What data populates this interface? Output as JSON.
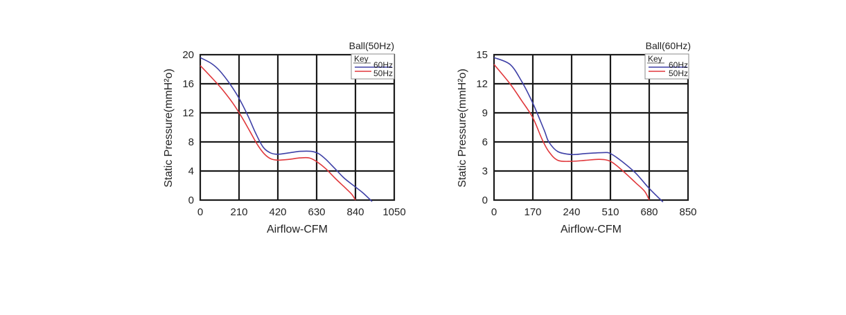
{
  "colors": {
    "series_60hz": "#3d3fa6",
    "series_50hz": "#e0373b",
    "grid": "#1a1a1a",
    "background": "#ffffff"
  },
  "chart_data": [
    {
      "type": "line",
      "title": "Ball(50Hz)",
      "xlabel": "Airflow-CFM",
      "ylabel": "Static Pressure(mmH²o)",
      "xticks": [
        "0",
        "210",
        "420",
        "630",
        "840",
        "1050"
      ],
      "yticks": [
        "20",
        "16",
        "12",
        "8",
        "4",
        "0"
      ],
      "xlim": [
        0,
        1050
      ],
      "ylim": [
        0,
        20
      ],
      "grid": true,
      "legend_title": "Key",
      "legend_position": "top-right",
      "series": [
        {
          "name": "60Hz",
          "color": "#3d3fa6",
          "points": [
            [
              0,
              19.6
            ],
            [
              60,
              18.8
            ],
            [
              105,
              17.8
            ],
            [
              160,
              16.0
            ],
            [
              210,
              14.0
            ],
            [
              260,
              11.5
            ],
            [
              300,
              9.2
            ],
            [
              340,
              7.3
            ],
            [
              380,
              6.5
            ],
            [
              420,
              6.3
            ],
            [
              480,
              6.5
            ],
            [
              540,
              6.7
            ],
            [
              600,
              6.7
            ],
            [
              640,
              6.4
            ],
            [
              680,
              5.6
            ],
            [
              730,
              4.3
            ],
            [
              780,
              3.0
            ],
            [
              840,
              1.8
            ],
            [
              880,
              1.0
            ],
            [
              930,
              -0.2
            ]
          ]
        },
        {
          "name": "50Hz",
          "color": "#e0373b",
          "points": [
            [
              0,
              18.5
            ],
            [
              60,
              16.9
            ],
            [
              120,
              15.2
            ],
            [
              180,
              13.2
            ],
            [
              230,
              11.2
            ],
            [
              270,
              9.4
            ],
            [
              310,
              7.6
            ],
            [
              345,
              6.4
            ],
            [
              380,
              5.7
            ],
            [
              420,
              5.5
            ],
            [
              480,
              5.6
            ],
            [
              540,
              5.8
            ],
            [
              590,
              5.8
            ],
            [
              630,
              5.3
            ],
            [
              680,
              4.3
            ],
            [
              730,
              3.0
            ],
            [
              780,
              1.8
            ],
            [
              820,
              0.8
            ],
            [
              840,
              0.0
            ]
          ]
        }
      ]
    },
    {
      "type": "line",
      "title": "Ball(60Hz)",
      "xlabel": "Airflow-CFM",
      "ylabel": "Static Pressure(mmH²o)",
      "xticks": [
        "0",
        "170",
        "240",
        "510",
        "680",
        "850"
      ],
      "yticks": [
        "15",
        "12",
        "9",
        "6",
        "3",
        "0"
      ],
      "xlim": [
        0,
        850
      ],
      "ylim": [
        0,
        15
      ],
      "grid": true,
      "legend_title": "Key",
      "legend_position": "top-right",
      "series": [
        {
          "name": "60Hz",
          "color": "#3d3fa6",
          "points": [
            [
              0,
              14.7
            ],
            [
              70,
              14.0
            ],
            [
              120,
              12.3
            ],
            [
              170,
              10.0
            ],
            [
              220,
              7.2
            ],
            [
              240,
              6.0
            ],
            [
              280,
              5.0
            ],
            [
              340,
              4.7
            ],
            [
              400,
              4.8
            ],
            [
              480,
              4.9
            ],
            [
              510,
              4.8
            ],
            [
              560,
              4.0
            ],
            [
              620,
              2.8
            ],
            [
              680,
              1.2
            ],
            [
              740,
              -0.2
            ]
          ]
        },
        {
          "name": "50Hz",
          "color": "#e0373b",
          "points": [
            [
              0,
              14.0
            ],
            [
              70,
              12.0
            ],
            [
              120,
              10.3
            ],
            [
              170,
              8.5
            ],
            [
              210,
              6.3
            ],
            [
              240,
              5.0
            ],
            [
              280,
              4.1
            ],
            [
              340,
              4.0
            ],
            [
              400,
              4.1
            ],
            [
              460,
              4.2
            ],
            [
              510,
              4.0
            ],
            [
              560,
              3.1
            ],
            [
              620,
              1.8
            ],
            [
              660,
              0.9
            ],
            [
              680,
              0.0
            ]
          ]
        }
      ]
    }
  ]
}
